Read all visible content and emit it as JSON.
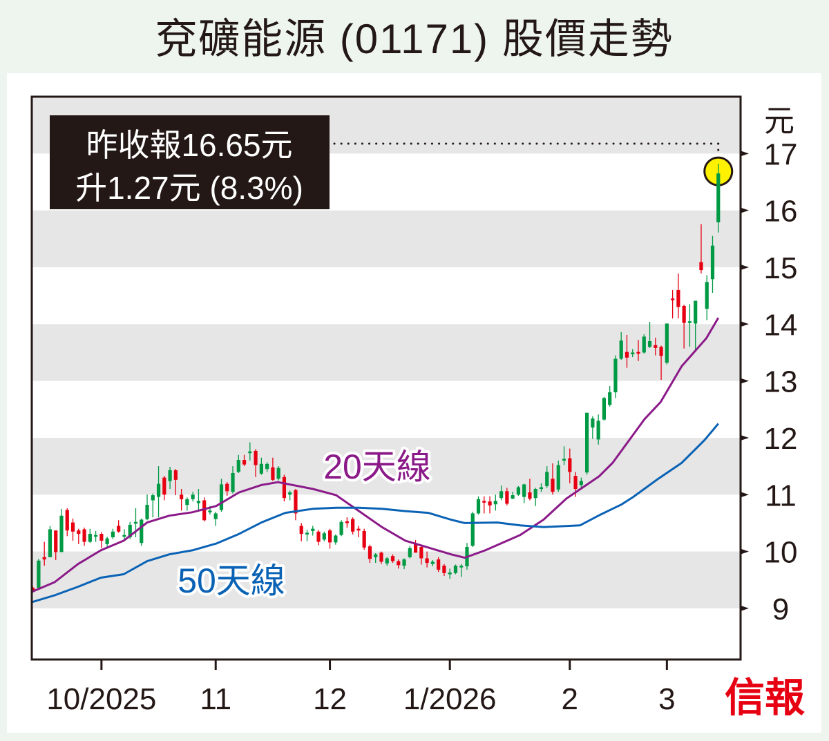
{
  "title": "兗礦能源 (01171) 股價走勢",
  "annotation": {
    "line1": "昨收報16.65元",
    "line2": "升1.27元 (8.3%)"
  },
  "logo_text": "信報",
  "colors": {
    "up": "#009944",
    "down": "#e60012",
    "ma20": "#8b1a89",
    "ma50": "#0a62b5",
    "band": "#e6e6e6",
    "highlight": "#fff200",
    "box": "#231815"
  },
  "chart_data": {
    "type": "candlestick",
    "title": "兗礦能源 (01171) 股價走勢",
    "ylabel": "元",
    "ylim": [
      8.1,
      18
    ],
    "xlim": [
      -0.2,
      123.9
    ],
    "yticks": [
      9,
      10,
      11,
      12,
      13,
      14,
      15,
      16,
      17
    ],
    "ytick_labels": [
      "9",
      "10",
      "11",
      "12",
      "13",
      "14",
      "15",
      "16",
      "17"
    ],
    "xticks": [
      {
        "index": 12,
        "label": "10/2025"
      },
      {
        "index": 32,
        "label": "11"
      },
      {
        "index": 52,
        "label": "12"
      },
      {
        "index": 73,
        "label": "1/2026"
      },
      {
        "index": 94,
        "label": "2"
      },
      {
        "index": 111,
        "label": "3"
      }
    ],
    "last_close": 16.65,
    "change": 1.27,
    "change_pct": 8.3,
    "ohlc_fields": [
      "open",
      "high",
      "low",
      "close"
    ],
    "candles": [
      [
        9.36,
        9.38,
        9.28,
        9.3
      ],
      [
        9.36,
        9.87,
        9.35,
        9.84
      ],
      [
        9.9,
        10.17,
        9.75,
        9.86
      ],
      [
        9.9,
        10.45,
        9.9,
        10.39
      ],
      [
        10.37,
        10.37,
        9.85,
        9.99
      ],
      [
        9.99,
        10.75,
        9.99,
        10.63
      ],
      [
        10.73,
        10.76,
        10.27,
        10.37
      ],
      [
        10.51,
        10.58,
        10.19,
        10.35
      ],
      [
        10.37,
        10.4,
        10.13,
        10.31
      ],
      [
        10.39,
        10.42,
        10.1,
        10.17
      ],
      [
        10.17,
        10.4,
        10.15,
        10.31
      ],
      [
        10.29,
        10.36,
        10.17,
        10.29
      ],
      [
        10.31,
        10.34,
        10.06,
        10.19
      ],
      [
        10.13,
        10.26,
        10.05,
        10.23
      ],
      [
        10.25,
        10.4,
        10.22,
        10.35
      ],
      [
        10.45,
        10.55,
        10.33,
        10.35
      ],
      [
        10.29,
        10.39,
        10.19,
        10.29
      ],
      [
        10.25,
        10.52,
        10.22,
        10.47
      ],
      [
        10.52,
        10.76,
        10.25,
        10.52
      ],
      [
        10.15,
        10.58,
        10.1,
        10.56
      ],
      [
        10.57,
        11.0,
        10.55,
        10.82
      ],
      [
        10.9,
        11.02,
        10.6,
        10.99
      ],
      [
        10.96,
        11.5,
        10.6,
        11.19
      ],
      [
        11.3,
        11.33,
        10.9,
        11.0
      ],
      [
        11.24,
        11.49,
        11.1,
        11.43
      ],
      [
        11.43,
        11.45,
        10.99,
        11.26
      ],
      [
        11.0,
        11.1,
        10.72,
        10.92
      ],
      [
        10.82,
        10.95,
        10.72,
        10.92
      ],
      [
        10.92,
        11.05,
        10.88,
        11.0
      ],
      [
        10.85,
        11.1,
        10.7,
        10.89
      ],
      [
        10.9,
        10.95,
        10.53,
        10.55
      ],
      [
        10.72,
        10.8,
        10.65,
        10.72
      ],
      [
        10.57,
        10.7,
        10.45,
        10.67
      ],
      [
        10.73,
        11.28,
        10.7,
        11.18
      ],
      [
        11.19,
        11.22,
        10.98,
        11.06
      ],
      [
        11.05,
        11.5,
        11.02,
        11.38
      ],
      [
        11.4,
        11.7,
        11.38,
        11.61
      ],
      [
        11.61,
        11.7,
        11.5,
        11.53
      ],
      [
        11.73,
        11.92,
        11.6,
        11.76
      ],
      [
        11.77,
        11.8,
        11.31,
        11.52
      ],
      [
        11.37,
        11.65,
        11.35,
        11.54
      ],
      [
        11.45,
        11.57,
        11.4,
        11.54
      ],
      [
        11.48,
        11.65,
        11.24,
        11.26
      ],
      [
        11.28,
        11.5,
        11.25,
        11.47
      ],
      [
        11.31,
        11.35,
        10.88,
        10.94
      ],
      [
        11.0,
        11.07,
        10.9,
        11.04
      ],
      [
        11.08,
        11.1,
        10.55,
        10.67
      ],
      [
        10.45,
        10.5,
        10.18,
        10.31
      ],
      [
        10.33,
        10.38,
        10.18,
        10.33
      ],
      [
        10.36,
        10.45,
        10.28,
        10.4
      ],
      [
        10.35,
        10.38,
        10.11,
        10.17
      ],
      [
        10.21,
        10.35,
        10.18,
        10.32
      ],
      [
        10.37,
        10.4,
        10.05,
        10.16
      ],
      [
        10.16,
        10.3,
        10.12,
        10.28
      ],
      [
        10.29,
        10.55,
        10.27,
        10.52
      ],
      [
        10.53,
        10.6,
        10.42,
        10.5
      ],
      [
        10.57,
        10.6,
        10.3,
        10.35
      ],
      [
        10.4,
        10.45,
        10.25,
        10.37
      ],
      [
        10.36,
        10.4,
        10.03,
        10.07
      ],
      [
        10.09,
        10.12,
        9.8,
        9.87
      ],
      [
        9.9,
        9.97,
        9.8,
        9.95
      ],
      [
        9.98,
        10.0,
        9.78,
        9.82
      ],
      [
        9.79,
        9.9,
        9.75,
        9.88
      ],
      [
        9.92,
        9.95,
        9.8,
        9.83
      ],
      [
        9.83,
        9.86,
        9.7,
        9.76
      ],
      [
        9.75,
        9.88,
        9.69,
        9.86
      ],
      [
        9.9,
        10.1,
        9.88,
        10.06
      ],
      [
        10.13,
        10.2,
        9.98,
        9.98
      ],
      [
        10.08,
        10.1,
        9.77,
        9.88
      ],
      [
        9.88,
        10.0,
        9.72,
        9.8
      ],
      [
        9.78,
        9.85,
        9.74,
        9.82
      ],
      [
        9.86,
        9.9,
        9.64,
        9.68
      ],
      [
        9.75,
        9.78,
        9.57,
        9.62
      ],
      [
        9.63,
        9.7,
        9.52,
        9.63
      ],
      [
        9.62,
        9.77,
        9.6,
        9.75
      ],
      [
        9.74,
        9.78,
        9.55,
        9.75
      ],
      [
        9.74,
        10.15,
        9.68,
        10.08
      ],
      [
        10.1,
        10.7,
        10.08,
        10.67
      ],
      [
        10.67,
        10.97,
        10.65,
        10.92
      ],
      [
        10.89,
        10.97,
        10.67,
        10.87
      ],
      [
        10.88,
        10.97,
        10.67,
        10.81
      ],
      [
        10.83,
        11.0,
        10.72,
        10.89
      ],
      [
        10.94,
        11.16,
        10.9,
        11.06
      ],
      [
        11.06,
        11.12,
        10.81,
        10.84
      ],
      [
        10.93,
        11.05,
        10.92,
        10.99
      ],
      [
        11.0,
        11.15,
        10.98,
        11.13
      ],
      [
        10.96,
        11.19,
        10.85,
        11.18
      ],
      [
        11.04,
        11.28,
        10.9,
        10.93
      ],
      [
        10.94,
        11.12,
        10.8,
        11.1
      ],
      [
        11.13,
        11.2,
        11.05,
        11.13
      ],
      [
        11.15,
        11.5,
        11.12,
        11.4
      ],
      [
        11.28,
        11.55,
        11.0,
        11.05
      ],
      [
        11.09,
        11.6,
        11.05,
        11.52
      ],
      [
        11.61,
        11.85,
        11.52,
        11.63
      ],
      [
        11.64,
        11.81,
        11.2,
        11.4
      ],
      [
        11.33,
        11.4,
        10.96,
        11.1
      ],
      [
        11.17,
        11.3,
        11.1,
        11.24
      ],
      [
        11.39,
        12.44,
        11.35,
        12.44
      ],
      [
        12.18,
        12.38,
        11.98,
        12.34
      ],
      [
        11.97,
        12.41,
        11.88,
        12.3
      ],
      [
        12.32,
        12.72,
        12.3,
        12.7
      ],
      [
        12.58,
        12.91,
        12.55,
        12.8
      ],
      [
        12.8,
        13.45,
        12.7,
        13.39
      ],
      [
        13.39,
        13.86,
        13.37,
        13.71
      ],
      [
        13.51,
        13.81,
        13.23,
        13.41
      ],
      [
        13.49,
        13.56,
        13.42,
        13.5
      ],
      [
        13.51,
        13.72,
        13.35,
        13.48
      ],
      [
        13.5,
        13.82,
        13.48,
        13.78
      ],
      [
        13.6,
        14.04,
        13.58,
        13.7
      ],
      [
        13.63,
        13.76,
        13.45,
        13.58
      ],
      [
        13.6,
        13.62,
        13.02,
        13.44
      ],
      [
        13.32,
        14.01,
        13.29,
        14.01
      ],
      [
        14.45,
        14.6,
        14.1,
        14.43
      ],
      [
        14.6,
        14.89,
        14.1,
        14.3
      ],
      [
        14.32,
        14.34,
        13.57,
        14.02
      ],
      [
        14.03,
        14.35,
        13.6,
        14.05
      ],
      [
        14.01,
        14.41,
        13.55,
        14.41
      ],
      [
        15.09,
        15.76,
        14.89,
        14.95
      ],
      [
        14.27,
        14.86,
        14.07,
        14.74
      ],
      [
        14.79,
        15.55,
        14.55,
        15.38
      ],
      [
        15.79,
        16.82,
        15.61,
        16.65
      ]
    ],
    "series": [
      {
        "name": "20天線",
        "points": [
          [
            -0.2,
            9.29
          ],
          [
            3.8,
            9.46
          ],
          [
            7.9,
            9.78
          ],
          [
            11.9,
            10.02
          ],
          [
            15.9,
            10.19
          ],
          [
            20,
            10.51
          ],
          [
            23.9,
            10.63
          ],
          [
            27.9,
            10.69
          ],
          [
            32.1,
            10.8
          ],
          [
            36.1,
            11.04
          ],
          [
            40,
            11.17
          ],
          [
            42.9,
            11.22
          ],
          [
            49,
            11.1
          ],
          [
            53.1,
            10.99
          ],
          [
            57.1,
            10.71
          ],
          [
            61.1,
            10.43
          ],
          [
            65.2,
            10.19
          ],
          [
            69.2,
            10.07
          ],
          [
            73.2,
            9.95
          ],
          [
            75.6,
            9.89
          ],
          [
            79.2,
            10.02
          ],
          [
            85.3,
            10.29
          ],
          [
            89.4,
            10.56
          ],
          [
            93.4,
            10.93
          ],
          [
            99.1,
            11.32
          ],
          [
            101.5,
            11.56
          ],
          [
            107.1,
            12.33
          ],
          [
            109.9,
            12.63
          ],
          [
            113.6,
            13.26
          ],
          [
            117.9,
            13.75
          ],
          [
            120,
            14.11
          ]
        ]
      },
      {
        "name": "50天線",
        "points": [
          [
            -0.2,
            9.11
          ],
          [
            3.8,
            9.23
          ],
          [
            7.9,
            9.38
          ],
          [
            11.9,
            9.54
          ],
          [
            15.9,
            9.6
          ],
          [
            20,
            9.83
          ],
          [
            23.9,
            9.95
          ],
          [
            27.9,
            10.02
          ],
          [
            32.1,
            10.14
          ],
          [
            36.1,
            10.31
          ],
          [
            40,
            10.51
          ],
          [
            44.2,
            10.68
          ],
          [
            49,
            10.75
          ],
          [
            53.1,
            10.77
          ],
          [
            57.1,
            10.77
          ],
          [
            61.1,
            10.75
          ],
          [
            65.2,
            10.71
          ],
          [
            69.2,
            10.68
          ],
          [
            73.2,
            10.56
          ],
          [
            75.6,
            10.5
          ],
          [
            81.3,
            10.51
          ],
          [
            85.3,
            10.46
          ],
          [
            89.4,
            10.43
          ],
          [
            95.8,
            10.46
          ],
          [
            99.4,
            10.65
          ],
          [
            103.1,
            10.83
          ],
          [
            105.1,
            10.96
          ],
          [
            109.5,
            11.28
          ],
          [
            113.6,
            11.56
          ],
          [
            117.6,
            11.96
          ],
          [
            120,
            12.25
          ]
        ]
      }
    ]
  }
}
